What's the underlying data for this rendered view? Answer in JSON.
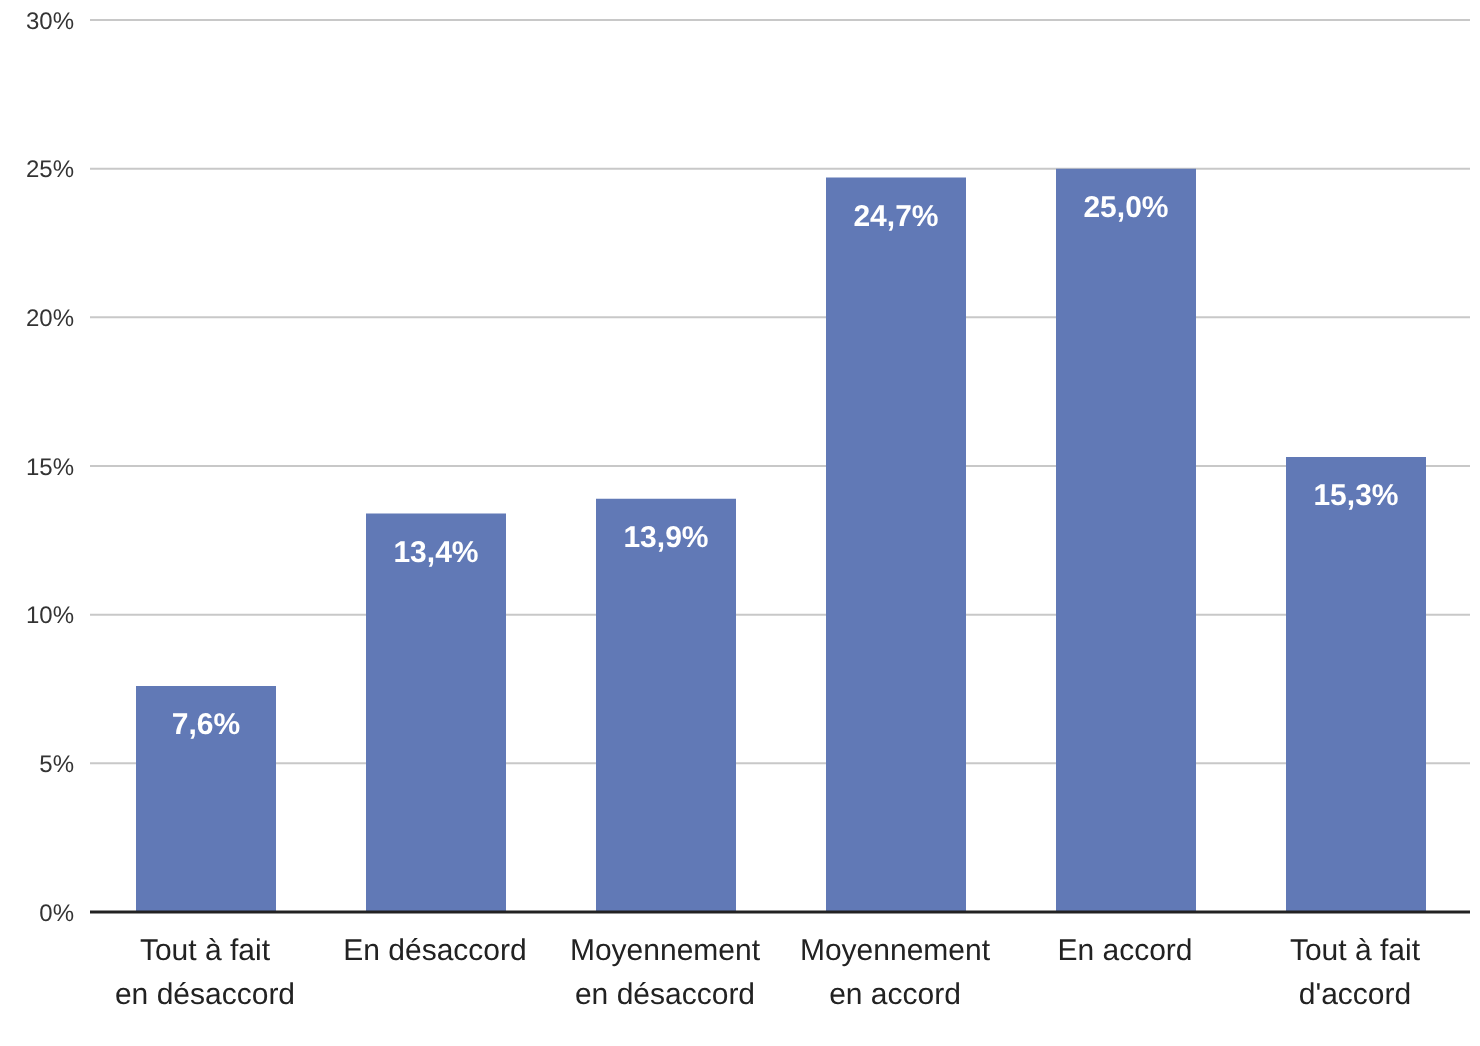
{
  "chart_data": {
    "type": "bar",
    "categories": [
      "Tout à fait en désaccord",
      "En désaccord",
      "Moyennement en désaccord",
      "Moyennement en accord",
      "En accord",
      "Tout à fait d'accord"
    ],
    "values": [
      7.6,
      13.4,
      13.9,
      24.7,
      25.0,
      15.3
    ],
    "value_labels": [
      "7,6%",
      "13,4%",
      "13,9%",
      "24,7%",
      "25,0%",
      "15,3%"
    ],
    "color": "#6179b6",
    "ylim": [
      0,
      30
    ],
    "yticks": [
      {
        "value": 0,
        "label": "0%"
      },
      {
        "value": 5,
        "label": "5%"
      },
      {
        "value": 10,
        "label": "10%"
      },
      {
        "value": 15,
        "label": "15%"
      },
      {
        "value": 20,
        "label": "20%"
      },
      {
        "value": 25,
        "label": "25%"
      },
      {
        "value": 30,
        "label": "30%"
      }
    ],
    "grid": "y"
  }
}
